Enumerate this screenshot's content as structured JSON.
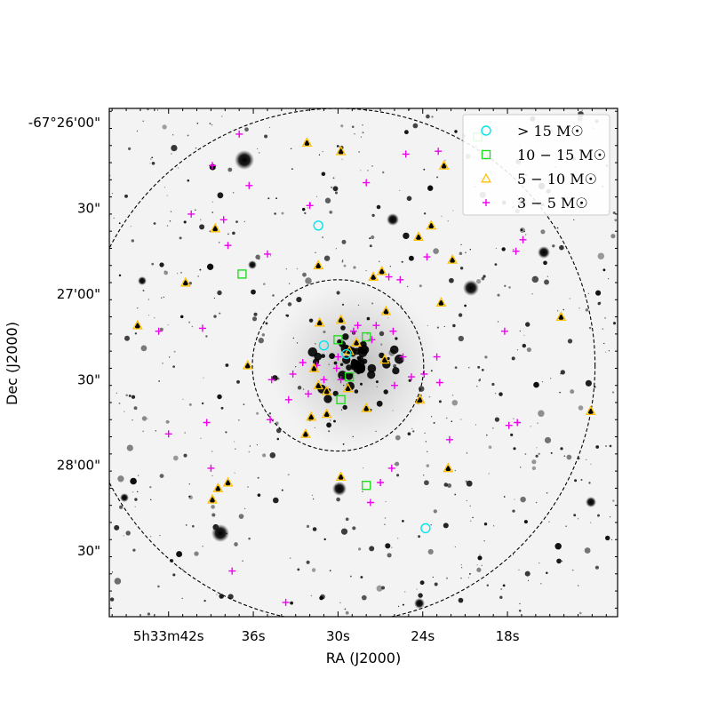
{
  "chart_data": {
    "type": "scatter",
    "title": "",
    "xlabel": "RA (J2000)",
    "ylabel": "Dec (J2000)",
    "background": "inverted grayscale sky image",
    "x_ticks": [
      "5h33m42s",
      "36s",
      "30s",
      "24s",
      "18s"
    ],
    "y_ticks": [
      "-67°26'00\"",
      "30\"",
      "27'00\"",
      "30\"",
      "28'00\"",
      "30\""
    ],
    "xlim_s": [
      46.2,
      10.2
    ],
    "ylim_arcsec": [
      125,
      -53
    ],
    "circles": [
      {
        "name": "inner",
        "center": [
          30.0,
          35
        ],
        "radius_arcsec": 30,
        "style": "dashed"
      },
      {
        "name": "outer",
        "center": [
          30.0,
          35
        ],
        "radius_arcsec": 90,
        "style": "dashed"
      }
    ],
    "legend": {
      "position": "upper right",
      "entries": [
        {
          "label": "> 15 M☉",
          "marker": "circle",
          "color": "#00e5ee"
        },
        {
          "label": "10 − 15 M☉",
          "marker": "square",
          "color": "#22dd22"
        },
        {
          "label": "5 − 10 M☉",
          "marker": "triangle",
          "color": "#ffc000"
        },
        {
          "label": "3 − 5 M☉",
          "marker": "plus",
          "color": "#ee00ee"
        }
      ]
    },
    "series": [
      {
        "name": ">15 Msun",
        "marker": "circle",
        "color": "#00e5ee",
        "points": [
          [
            23.8,
            -22
          ],
          [
            31.0,
            42
          ],
          [
            29.4,
            39
          ],
          [
            31.4,
            84
          ]
        ]
      },
      {
        "name": "10-15 Msun",
        "marker": "square",
        "color": "#22dd22",
        "points": [
          [
            30.0,
            -55
          ],
          [
            28.0,
            -7
          ],
          [
            29.8,
            23
          ],
          [
            29.2,
            31
          ],
          [
            30.0,
            44
          ],
          [
            28.0,
            45
          ],
          [
            36.8,
            67
          ],
          [
            20.1,
            115
          ]
        ]
      },
      {
        "name": "5-10 Msun",
        "marker": "triangle",
        "color": "#ffc000",
        "points": [
          [
            38.9,
            -12
          ],
          [
            38.5,
            -8
          ],
          [
            37.8,
            -6
          ],
          [
            29.8,
            -4
          ],
          [
            22.2,
            -1
          ],
          [
            32.3,
            11
          ],
          [
            31.9,
            17
          ],
          [
            30.8,
            18
          ],
          [
            28.0,
            20
          ],
          [
            24.2,
            23
          ],
          [
            30.8,
            26
          ],
          [
            29.3,
            27
          ],
          [
            31.4,
            28
          ],
          [
            36.4,
            35
          ],
          [
            31.7,
            34
          ],
          [
            26.7,
            37
          ],
          [
            29.2,
            40
          ],
          [
            28.7,
            43
          ],
          [
            31.3,
            50
          ],
          [
            29.8,
            51
          ],
          [
            44.2,
            49
          ],
          [
            26.6,
            54
          ],
          [
            22.7,
            57
          ],
          [
            40.8,
            64
          ],
          [
            27.5,
            66
          ],
          [
            31.4,
            70
          ],
          [
            26.9,
            68
          ],
          [
            21.9,
            72
          ],
          [
            38.7,
            83
          ],
          [
            24.3,
            80
          ],
          [
            23.4,
            84
          ],
          [
            22.5,
            105
          ],
          [
            29.8,
            110
          ],
          [
            32.2,
            113
          ],
          [
            14.2,
            52
          ],
          [
            12.1,
            19
          ]
        ]
      },
      {
        "name": "3-5 Msun",
        "marker": "plus",
        "color": "#ee00ee",
        "points": [
          [
            37.5,
            -37
          ],
          [
            33.7,
            -48
          ],
          [
            27.7,
            -13
          ],
          [
            27.0,
            -6
          ],
          [
            39.0,
            -1
          ],
          [
            26.2,
            -1
          ],
          [
            22.1,
            9
          ],
          [
            42.0,
            11
          ],
          [
            39.3,
            15
          ],
          [
            34.8,
            16
          ],
          [
            17.9,
            14
          ],
          [
            17.3,
            15
          ],
          [
            33.5,
            23
          ],
          [
            32.1,
            25
          ],
          [
            29.8,
            30
          ],
          [
            26.0,
            28
          ],
          [
            24.8,
            31
          ],
          [
            25.4,
            38
          ],
          [
            31.0,
            30
          ],
          [
            34.7,
            30
          ],
          [
            33.2,
            32
          ],
          [
            30.1,
            34
          ],
          [
            32.5,
            36
          ],
          [
            31.5,
            35
          ],
          [
            30.0,
            38
          ],
          [
            28.9,
            47
          ],
          [
            27.6,
            44
          ],
          [
            28.6,
            49
          ],
          [
            27.3,
            49
          ],
          [
            26.1,
            47
          ],
          [
            23.0,
            38
          ],
          [
            23.9,
            32
          ],
          [
            22.8,
            29
          ],
          [
            42.7,
            47
          ],
          [
            39.6,
            48
          ],
          [
            18.2,
            47
          ],
          [
            35.0,
            74
          ],
          [
            26.4,
            66
          ],
          [
            25.6,
            65
          ],
          [
            37.8,
            77
          ],
          [
            23.7,
            73
          ],
          [
            40.4,
            88
          ],
          [
            38.1,
            86
          ],
          [
            17.4,
            75
          ],
          [
            16.9,
            79
          ],
          [
            36.3,
            98
          ],
          [
            28.0,
            99
          ],
          [
            38.9,
            105
          ],
          [
            37.0,
            116
          ],
          [
            25.2,
            109
          ],
          [
            22.9,
            110
          ],
          [
            32.0,
            91
          ]
        ]
      }
    ]
  }
}
